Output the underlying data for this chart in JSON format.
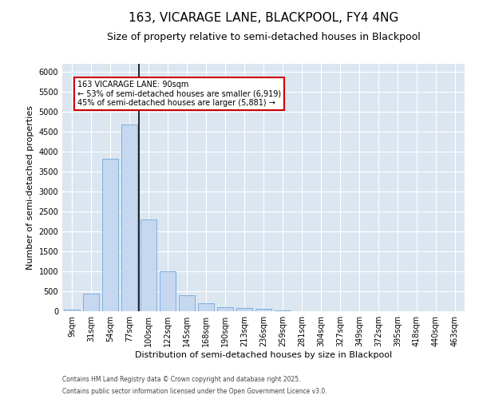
{
  "title1": "163, VICARAGE LANE, BLACKPOOL, FY4 4NG",
  "title2": "Size of property relative to semi-detached houses in Blackpool",
  "xlabel": "Distribution of semi-detached houses by size in Blackpool",
  "ylabel": "Number of semi-detached properties",
  "categories": [
    "9sqm",
    "31sqm",
    "54sqm",
    "77sqm",
    "100sqm",
    "122sqm",
    "145sqm",
    "168sqm",
    "190sqm",
    "213sqm",
    "236sqm",
    "259sqm",
    "281sqm",
    "304sqm",
    "327sqm",
    "349sqm",
    "372sqm",
    "395sqm",
    "418sqm",
    "440sqm",
    "463sqm"
  ],
  "bar_values": [
    50,
    440,
    3820,
    4680,
    2300,
    1000,
    410,
    200,
    100,
    75,
    60,
    30,
    0,
    0,
    0,
    0,
    0,
    0,
    0,
    0,
    0
  ],
  "bar_color": "#c5d8f0",
  "bar_edgecolor": "#5b9bd5",
  "annotation_line1": "163 VICARAGE LANE: 90sqm",
  "annotation_line2": "← 53% of semi-detached houses are smaller (6,919)",
  "annotation_line3": "45% of semi-detached houses are larger (5,881) →",
  "annotation_box_edgecolor": "#cc0000",
  "vline_x_index": 3,
  "vline_x_offset": 0.5,
  "ylim_max": 6200,
  "yticks": [
    0,
    500,
    1000,
    1500,
    2000,
    2500,
    3000,
    3500,
    4000,
    4500,
    5000,
    5500,
    6000
  ],
  "footer1": "Contains HM Land Registry data © Crown copyright and database right 2025.",
  "footer2": "Contains public sector information licensed under the Open Government Licence v3.0.",
  "plot_bg_color": "#dce6f1",
  "fig_bg_color": "#ffffff",
  "grid_color": "#ffffff",
  "title_fontsize": 11,
  "subtitle_fontsize": 9,
  "tick_fontsize": 7,
  "ylabel_fontsize": 8,
  "xlabel_fontsize": 8,
  "footer_fontsize": 5.5,
  "annot_fontsize": 7
}
